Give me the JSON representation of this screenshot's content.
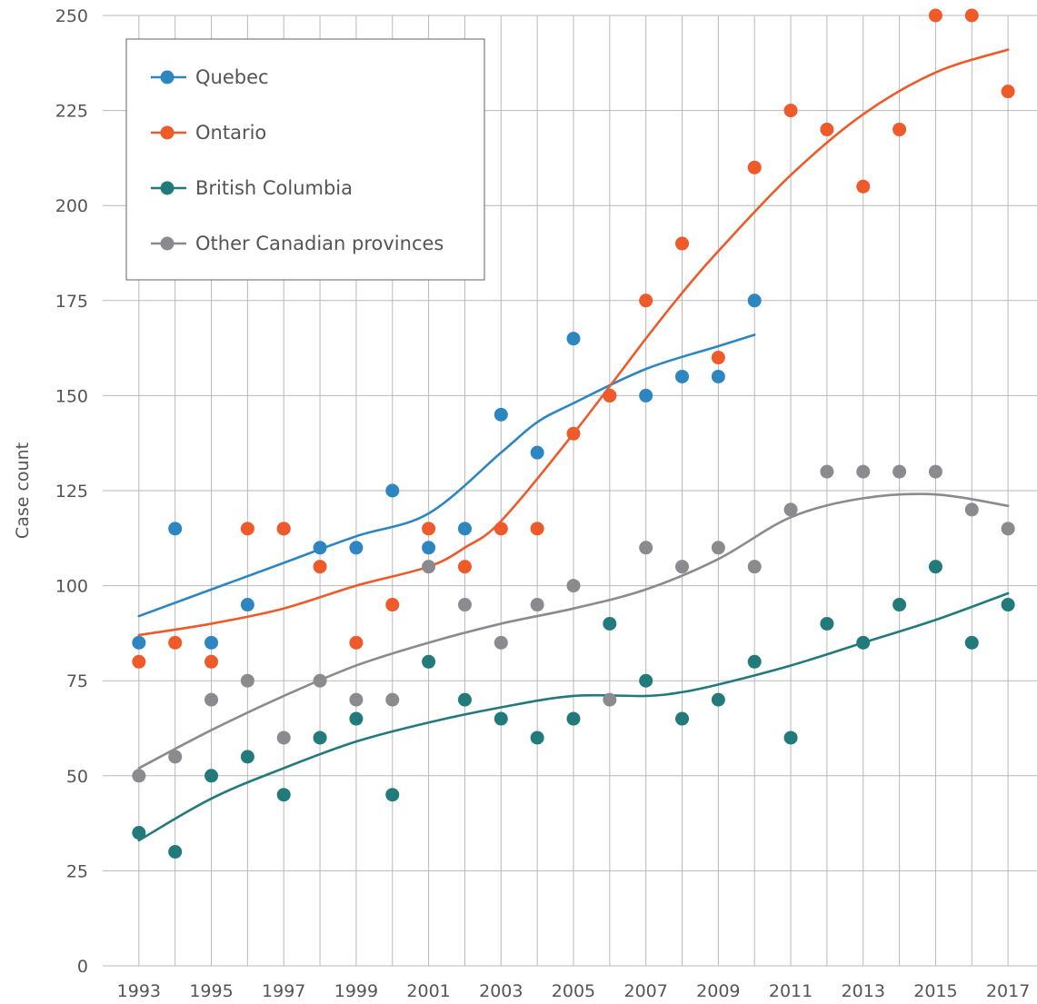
{
  "chart_data": {
    "type": "scatter",
    "title": "",
    "xlabel": "",
    "ylabel": "Case count",
    "xlim": [
      1992,
      2017.8
    ],
    "ylim": [
      0,
      250
    ],
    "x_ticks": [
      1993,
      1995,
      1997,
      1999,
      2001,
      2003,
      2005,
      2007,
      2009,
      2011,
      2013,
      2015,
      2017
    ],
    "y_ticks": [
      0,
      25,
      50,
      75,
      100,
      125,
      150,
      175,
      200,
      225,
      250
    ],
    "grid": true,
    "legend_position": "top-left",
    "series": [
      {
        "name": "Quebec",
        "color": "#2e86c1",
        "x": [
          1993,
          1994,
          1995,
          1996,
          1997,
          1998,
          1999,
          2000,
          2001,
          2002,
          2003,
          2004,
          2005,
          2006,
          2007,
          2008,
          2009,
          2010
        ],
        "y": [
          85,
          115,
          85,
          95,
          115,
          110,
          110,
          125,
          110,
          115,
          145,
          135,
          165,
          150,
          150,
          155,
          155,
          175
        ],
        "trend": {
          "x": [
            1993,
            1995,
            1997,
            1999,
            2001,
            2003,
            2004,
            2005,
            2007,
            2009,
            2010
          ],
          "y": [
            92,
            99,
            106,
            113,
            119,
            135,
            143,
            148,
            157,
            163,
            166
          ]
        }
      },
      {
        "name": "Ontario",
        "color": "#ee5a2a",
        "x": [
          1993,
          1994,
          1995,
          1996,
          1997,
          1998,
          1999,
          2000,
          2001,
          2002,
          2003,
          2004,
          2005,
          2006,
          2007,
          2008,
          2009,
          2010,
          2011,
          2012,
          2013,
          2014,
          2015,
          2016,
          2017
        ],
        "y": [
          80,
          85,
          80,
          115,
          115,
          105,
          85,
          95,
          115,
          105,
          115,
          115,
          140,
          150,
          175,
          190,
          160,
          210,
          225,
          220,
          205,
          220,
          250,
          250,
          230
        ],
        "trend": {
          "x": [
            1993,
            1995,
            1997,
            1999,
            2001,
            2002,
            2003,
            2005,
            2007,
            2008,
            2009,
            2011,
            2013,
            2015,
            2017
          ],
          "y": [
            87,
            90,
            94,
            100,
            105,
            110,
            117,
            140,
            165,
            177,
            188,
            208,
            224,
            235,
            241
          ]
        }
      },
      {
        "name": "British Columbia",
        "color": "#237a7a",
        "x": [
          1993,
          1994,
          1995,
          1996,
          1997,
          1998,
          1999,
          2000,
          2001,
          2002,
          2003,
          2004,
          2005,
          2006,
          2007,
          2008,
          2009,
          2010,
          2011,
          2012,
          2013,
          2014,
          2015,
          2016,
          2017
        ],
        "y": [
          35,
          30,
          50,
          55,
          45,
          60,
          65,
          45,
          80,
          70,
          65,
          60,
          65,
          90,
          75,
          65,
          70,
          80,
          60,
          90,
          85,
          95,
          105,
          85,
          95
        ],
        "trend": {
          "x": [
            1993,
            1995,
            1997,
            1999,
            2001,
            2003,
            2005,
            2007,
            2008,
            2009,
            2011,
            2013,
            2015,
            2017
          ],
          "y": [
            33,
            44,
            52,
            59,
            64,
            68,
            71,
            71,
            72,
            74,
            79,
            85,
            91,
            98
          ]
        }
      },
      {
        "name": "Other Canadian provinces",
        "color": "#8a8a8f",
        "x": [
          1993,
          1994,
          1995,
          1996,
          1997,
          1998,
          1999,
          2000,
          2001,
          2002,
          2003,
          2004,
          2005,
          2006,
          2007,
          2008,
          2009,
          2010,
          2011,
          2012,
          2013,
          2014,
          2015,
          2016,
          2017
        ],
        "y": [
          50,
          55,
          70,
          75,
          60,
          75,
          70,
          70,
          105,
          95,
          85,
          95,
          100,
          70,
          110,
          105,
          110,
          105,
          120,
          130,
          130,
          130,
          130,
          120,
          115
        ],
        "trend": {
          "x": [
            1993,
            1995,
            1997,
            1999,
            2001,
            2003,
            2005,
            2007,
            2009,
            2011,
            2013,
            2015,
            2017
          ],
          "y": [
            52,
            62,
            71,
            79,
            85,
            90,
            94,
            99,
            107,
            118,
            123,
            124,
            121
          ]
        }
      }
    ]
  }
}
